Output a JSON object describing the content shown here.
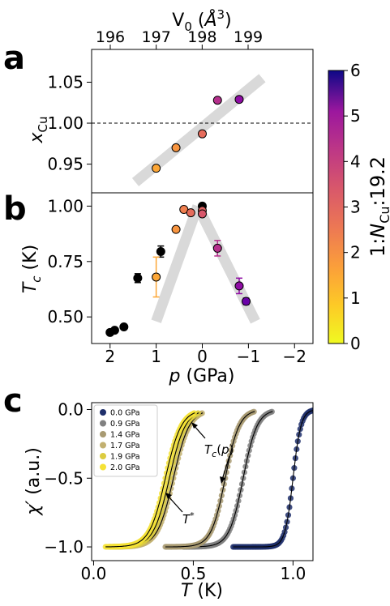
{
  "chart_data": [
    {
      "panel": "a",
      "type": "scatter",
      "xlabel": "p (GPa)",
      "ylabel": "x_Cu",
      "top_axis_label": "V_0 (Å^3)",
      "top_ticks": [
        "196",
        "197",
        "198",
        "199"
      ],
      "x_ticks": [
        "2",
        "1",
        "0",
        "−1",
        "−2"
      ],
      "y_ticks": [
        "0.95",
        "1.00",
        "1.05"
      ],
      "xlim": [
        2.4,
        -2.4
      ],
      "ylim": [
        0.915,
        1.09
      ],
      "reference_line": 1.0,
      "trend_band": [
        [
          1.45,
          0.928
        ],
        [
          -1.3,
          1.055
        ]
      ],
      "points": [
        {
          "p": 1.0,
          "y": 0.945,
          "color": "#fca636"
        },
        {
          "p": 0.57,
          "y": 0.97,
          "color": "#f89540"
        },
        {
          "p": 0.0,
          "y": 0.987,
          "color": "#e66c5c"
        },
        {
          "p": -0.33,
          "y": 1.028,
          "color": "#b52f8c"
        },
        {
          "p": -0.8,
          "y": 1.029,
          "color": "#8f0da4"
        }
      ]
    },
    {
      "panel": "b",
      "type": "scatter",
      "xlabel": "p (GPa)",
      "ylabel": "T_c (K)",
      "x_ticks": [
        "2",
        "1",
        "0",
        "−1",
        "−2"
      ],
      "y_ticks": [
        "0.50",
        "0.75",
        "1.00"
      ],
      "xlim": [
        2.4,
        -2.4
      ],
      "ylim": [
        0.38,
        1.06
      ],
      "trend_bands": [
        [
          [
            1.0,
            0.48
          ],
          [
            0.1,
            1.0
          ]
        ],
        [
          [
            0.1,
            1.0
          ],
          [
            -1.15,
            0.48
          ]
        ]
      ],
      "points": [
        {
          "p": 2.0,
          "y": 0.43,
          "err": 0.0,
          "color": "#000000"
        },
        {
          "p": 1.9,
          "y": 0.44,
          "err": 0.0,
          "color": "#000000"
        },
        {
          "p": 1.7,
          "y": 0.455,
          "err": 0.0,
          "color": "#000000"
        },
        {
          "p": 1.4,
          "y": 0.675,
          "err": 0.02,
          "color": "#000000"
        },
        {
          "p": 0.9,
          "y": 0.795,
          "err": 0.025,
          "color": "#000000"
        },
        {
          "p": 0.0,
          "y": 1.0,
          "err": 0.0,
          "color": "#000000"
        },
        {
          "p": 1.0,
          "y": 0.68,
          "err": 0.09,
          "color": "#fca636"
        },
        {
          "p": 0.57,
          "y": 0.895,
          "err": 0.0,
          "color": "#f89540"
        },
        {
          "p": 0.4,
          "y": 0.985,
          "err": 0.0,
          "color": "#f07f4f"
        },
        {
          "p": 0.25,
          "y": 0.97,
          "err": 0.0,
          "color": "#e66c5c"
        },
        {
          "p": 0.0,
          "y": 0.98,
          "err": 0.0,
          "color": "#e16462"
        },
        {
          "p": 0.0,
          "y": 0.965,
          "err": 0.0,
          "color": "#d8576b"
        },
        {
          "p": -0.33,
          "y": 0.81,
          "err": 0.035,
          "color": "#b52f8c"
        },
        {
          "p": -0.8,
          "y": 0.64,
          "err": 0.035,
          "color": "#8f0da4"
        },
        {
          "p": -0.95,
          "y": 0.57,
          "err": 0.015,
          "color": "#6a00a8"
        }
      ]
    },
    {
      "panel": "c",
      "type": "line",
      "xlabel": "T (K)",
      "ylabel": "χ′ (a.u.)",
      "x_ticks": [
        "0.0",
        "0.5",
        "1.0"
      ],
      "y_ticks": [
        "0.0",
        "−0.5",
        "−1.0"
      ],
      "xlim": [
        -0.01,
        1.1
      ],
      "ylim": [
        -1.1,
        0.05
      ],
      "series": [
        {
          "name": "0.0 GPa",
          "color": "#1f2f6b",
          "tc": 1.0,
          "width": 0.02
        },
        {
          "name": "0.9 GPa",
          "color": "#808080",
          "tc": 0.75,
          "width": 0.035
        },
        {
          "name": "1.4 GPa",
          "color": "#a89a72",
          "tc": 0.66,
          "width": 0.035
        },
        {
          "name": "1.7 GPa",
          "color": "#c2b070",
          "tc": 0.4,
          "width": 0.04
        },
        {
          "name": "1.9 GPa",
          "color": "#dccc40",
          "tc": 0.38,
          "width": 0.04
        },
        {
          "name": "2.0 GPa",
          "color": "#f5e235",
          "tc": 0.36,
          "width": 0.04
        }
      ],
      "annotations": [
        {
          "text": "T_c(p)"
        },
        {
          "text": "T*"
        }
      ]
    }
  ],
  "panel_labels": [
    "a",
    "b",
    "c"
  ],
  "colorbar": {
    "label": "1:N_Cu:19.2",
    "ticks": [
      "0",
      "1",
      "2",
      "3",
      "4",
      "5",
      "6"
    ],
    "range": [
      0,
      6
    ]
  }
}
